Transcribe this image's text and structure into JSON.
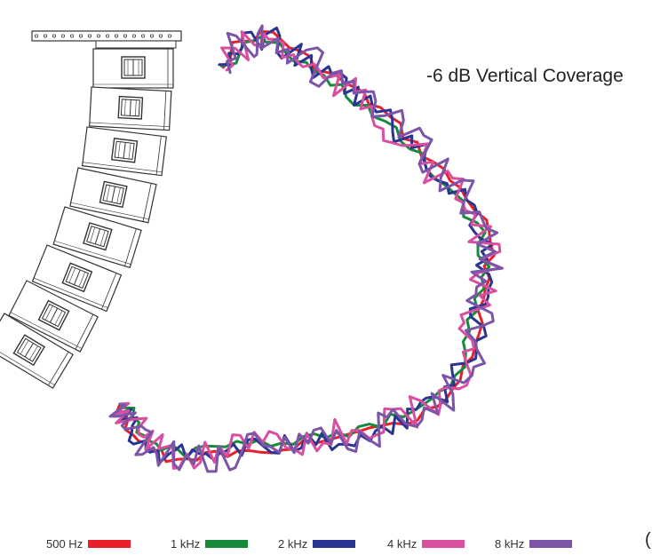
{
  "title": "-6 dB Vertical Coverage",
  "legend": [
    {
      "label": "500 Hz",
      "color": "#e8202a"
    },
    {
      "label": "1 kHz",
      "color": "#178a3c"
    },
    {
      "label": "2 kHz",
      "color": "#2a3591"
    },
    {
      "label": "4 kHz",
      "color": "#d94fa0"
    },
    {
      "label": "8 kHz",
      "color": "#7c55a8"
    }
  ],
  "corner_text": "(",
  "speaker_array": {
    "cabinets": 8,
    "icon": "line-array-speaker-icon"
  },
  "colors": {
    "outline": "#333333"
  }
}
